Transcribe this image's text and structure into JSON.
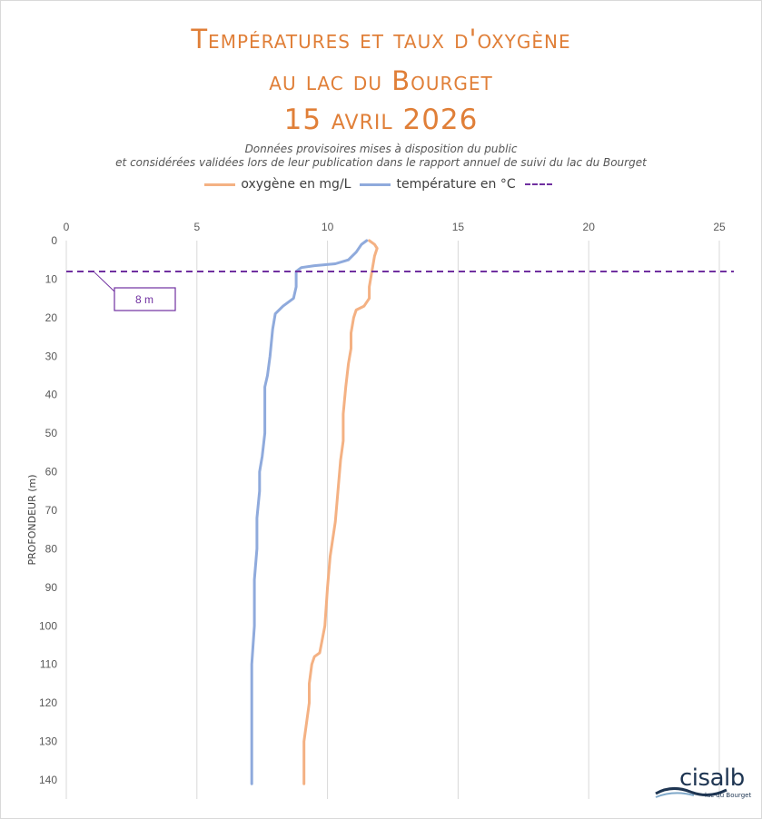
{
  "header": {
    "title_line1": "Températures et taux d'oxygène",
    "title_line2": "au lac du Bourget",
    "title_line3": "15 avril 2026",
    "subtitle_line1": "Données provisoires mises à disposition du public",
    "subtitle_line2": "et considérées validées lors de leur publication dans le rapport annuel de suivi du lac du Bourget"
  },
  "legend": {
    "oxygen_label": "oxygène en mg/L",
    "temperature_label": "température en °C",
    "dashed_label": ""
  },
  "logo": {
    "name": "cisalb",
    "tagline": "lac du Bourget"
  },
  "colors": {
    "oxygen": "#f4b183",
    "temperature": "#8faadc",
    "threshold": "#7030a0",
    "title": "#e07f38"
  },
  "chart_data": {
    "type": "line",
    "ylabel": "PROFONDEUR (m)",
    "xlabel": "",
    "xlim": [
      0,
      26
    ],
    "ylim": [
      0,
      142
    ],
    "x_ticks": [
      0,
      5,
      10,
      15,
      20,
      25
    ],
    "y_ticks": [
      0,
      10,
      20,
      30,
      40,
      50,
      60,
      70,
      80,
      90,
      100,
      110,
      120,
      130,
      140
    ],
    "y_inverted": true,
    "grid": "vertical",
    "legend_position": "top",
    "series": [
      {
        "name": "oxygène en mg/L",
        "color": "#f4b183",
        "points": [
          [
            11.6,
            0
          ],
          [
            11.8,
            1
          ],
          [
            11.9,
            2
          ],
          [
            11.8,
            4
          ],
          [
            11.7,
            8
          ],
          [
            11.6,
            12
          ],
          [
            11.6,
            15
          ],
          [
            11.4,
            17
          ],
          [
            11.1,
            18
          ],
          [
            11.0,
            20
          ],
          [
            10.9,
            24
          ],
          [
            10.9,
            28
          ],
          [
            10.8,
            32
          ],
          [
            10.7,
            38
          ],
          [
            10.6,
            45
          ],
          [
            10.6,
            52
          ],
          [
            10.5,
            57
          ],
          [
            10.4,
            65
          ],
          [
            10.3,
            73
          ],
          [
            10.1,
            82
          ],
          [
            10.0,
            90
          ],
          [
            9.9,
            100
          ],
          [
            9.7,
            107
          ],
          [
            9.5,
            108
          ],
          [
            9.4,
            110
          ],
          [
            9.3,
            115
          ],
          [
            9.3,
            120
          ],
          [
            9.2,
            125
          ],
          [
            9.1,
            130
          ],
          [
            9.1,
            135
          ],
          [
            9.1,
            141
          ]
        ]
      },
      {
        "name": "température en °C",
        "color": "#8faadc",
        "points": [
          [
            11.5,
            0
          ],
          [
            11.3,
            1
          ],
          [
            11.1,
            3
          ],
          [
            10.8,
            5
          ],
          [
            10.3,
            6
          ],
          [
            9.5,
            6.5
          ],
          [
            9.0,
            7
          ],
          [
            8.8,
            8
          ],
          [
            8.8,
            12
          ],
          [
            8.7,
            15
          ],
          [
            8.3,
            17
          ],
          [
            8.0,
            19
          ],
          [
            7.9,
            23
          ],
          [
            7.8,
            30
          ],
          [
            7.7,
            35
          ],
          [
            7.6,
            38
          ],
          [
            7.6,
            45
          ],
          [
            7.6,
            50
          ],
          [
            7.5,
            56
          ],
          [
            7.4,
            60
          ],
          [
            7.4,
            65
          ],
          [
            7.3,
            72
          ],
          [
            7.3,
            80
          ],
          [
            7.2,
            88
          ],
          [
            7.2,
            95
          ],
          [
            7.2,
            100
          ],
          [
            7.1,
            110
          ],
          [
            7.1,
            118
          ],
          [
            7.1,
            125
          ],
          [
            7.1,
            132
          ],
          [
            7.1,
            141
          ]
        ]
      }
    ],
    "threshold": {
      "depth": 8,
      "label": "8 m",
      "color": "#7030a0"
    }
  }
}
